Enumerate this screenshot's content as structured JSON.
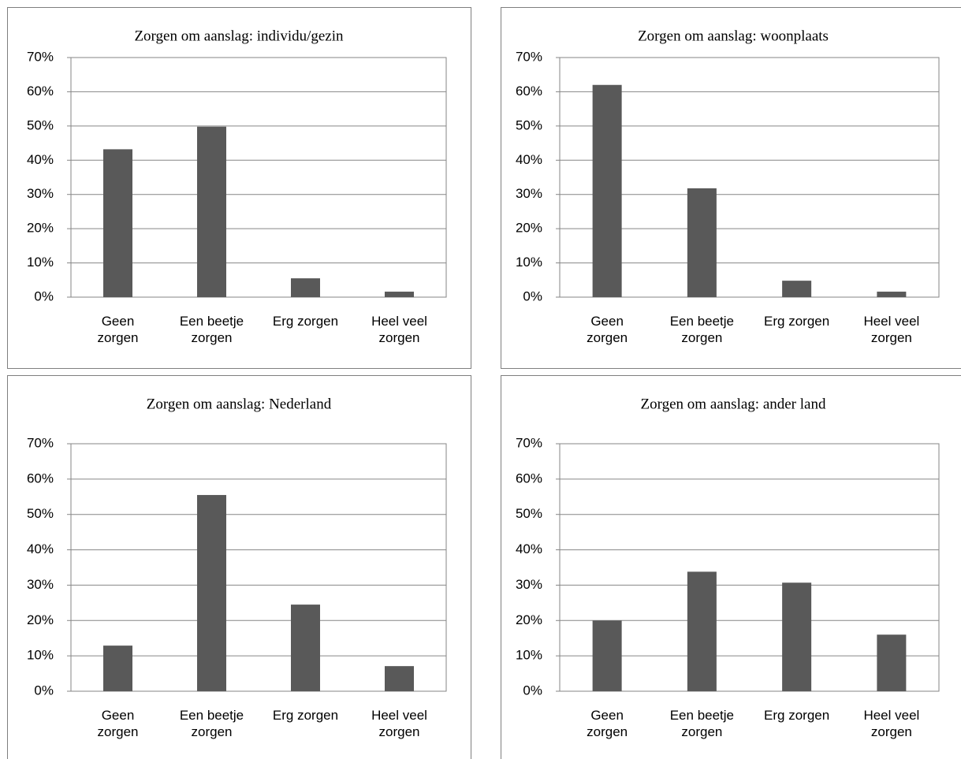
{
  "chart_data": [
    {
      "type": "bar",
      "title": "Zorgen om aanslag: individu/gezin",
      "categories": [
        "Geen zorgen",
        "Een beetje zorgen",
        "Erg zorgen",
        "Heel veel zorgen"
      ],
      "values": [
        43.2,
        49.8,
        5.5,
        1.6
      ],
      "color": "#595959",
      "ylim": [
        0,
        70
      ],
      "yticks": [
        {
          "value": 0,
          "label": "0%"
        },
        {
          "value": 10,
          "label": "10%"
        },
        {
          "value": 20,
          "label": "20%"
        },
        {
          "value": 30,
          "label": "30%"
        },
        {
          "value": 40,
          "label": "40%"
        },
        {
          "value": 50,
          "label": "50%"
        },
        {
          "value": 60,
          "label": "60%"
        },
        {
          "value": 70,
          "label": "70%"
        }
      ],
      "grid": true
    },
    {
      "type": "bar",
      "title": "Zorgen om aanslag: woonplaats",
      "categories": [
        "Geen zorgen",
        "Een beetje zorgen",
        "Erg zorgen",
        "Heel veel zorgen"
      ],
      "values": [
        62.0,
        31.8,
        4.8,
        1.6
      ],
      "color": "#595959",
      "ylim": [
        0,
        70
      ],
      "yticks": [
        {
          "value": 0,
          "label": "0%"
        },
        {
          "value": 10,
          "label": "10%"
        },
        {
          "value": 20,
          "label": "20%"
        },
        {
          "value": 30,
          "label": "30%"
        },
        {
          "value": 40,
          "label": "40%"
        },
        {
          "value": 50,
          "label": "50%"
        },
        {
          "value": 60,
          "label": "60%"
        },
        {
          "value": 70,
          "label": "70%"
        }
      ],
      "grid": true
    },
    {
      "type": "bar",
      "title": "Zorgen om aanslag: Nederland",
      "categories": [
        "Geen zorgen",
        "Een beetje zorgen",
        "Erg zorgen",
        "Heel veel zorgen"
      ],
      "values": [
        12.9,
        55.5,
        24.5,
        7.1
      ],
      "color": "#595959",
      "ylim": [
        0,
        70
      ],
      "yticks": [
        {
          "value": 0,
          "label": "0%"
        },
        {
          "value": 10,
          "label": "10%"
        },
        {
          "value": 20,
          "label": "20%"
        },
        {
          "value": 30,
          "label": "30%"
        },
        {
          "value": 40,
          "label": "40%"
        },
        {
          "value": 50,
          "label": "50%"
        },
        {
          "value": 60,
          "label": "60%"
        },
        {
          "value": 70,
          "label": "70%"
        }
      ],
      "grid": true
    },
    {
      "type": "bar",
      "title": "Zorgen om aanslag: ander land",
      "categories": [
        "Geen zorgen",
        "Een beetje zorgen",
        "Erg zorgen",
        "Heel veel zorgen"
      ],
      "values": [
        20.0,
        33.8,
        30.7,
        16.0
      ],
      "color": "#595959",
      "ylim": [
        0,
        70
      ],
      "yticks": [
        {
          "value": 0,
          "label": "0%"
        },
        {
          "value": 10,
          "label": "10%"
        },
        {
          "value": 20,
          "label": "20%"
        },
        {
          "value": 30,
          "label": "30%"
        },
        {
          "value": 40,
          "label": "40%"
        },
        {
          "value": 50,
          "label": "50%"
        },
        {
          "value": 60,
          "label": "60%"
        },
        {
          "value": 70,
          "label": "70%"
        }
      ],
      "grid": true
    }
  ]
}
